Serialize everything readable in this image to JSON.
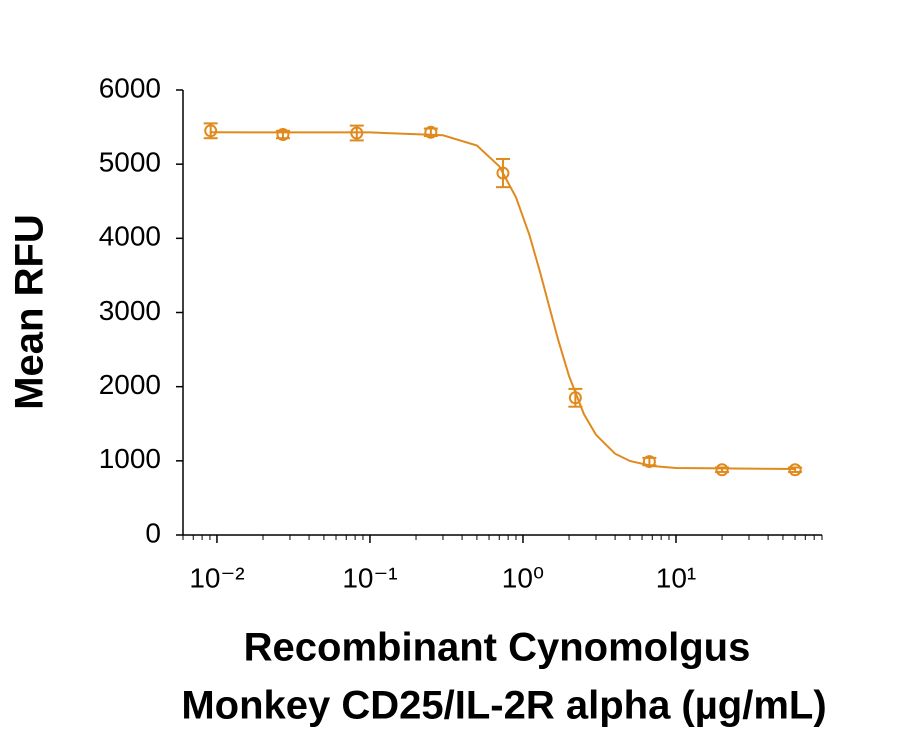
{
  "chart_data": {
    "type": "scatter",
    "y_label": "Mean RFU",
    "x_label": [
      "Recombinant Cynomolgus",
      "Monkey CD25/IL-2R alpha (µg/mL)"
    ],
    "x_log": true,
    "minor_ticks": true,
    "color": "#e08a1e",
    "xlim": [
      0.006,
      90
    ],
    "ylim": [
      0,
      6000
    ],
    "xticks": [
      {
        "value": 0.01,
        "label": "10⁻²"
      },
      {
        "value": 0.1,
        "label": "10⁻¹"
      },
      {
        "value": 1,
        "label": "10⁰"
      },
      {
        "value": 10,
        "label": "10¹"
      }
    ],
    "yticks": [
      0,
      1000,
      2000,
      3000,
      4000,
      5000,
      6000
    ],
    "x": [
      0.0091,
      0.027,
      0.082,
      0.25,
      0.74,
      2.2,
      6.7,
      20,
      60
    ],
    "values": [
      5450,
      5400,
      5420,
      5430,
      4880,
      1850,
      990,
      880,
      880
    ],
    "errors": [
      100,
      50,
      100,
      50,
      190,
      120,
      50,
      30,
      30
    ],
    "curve": {
      "x": [
        0.009,
        0.1,
        0.3,
        0.5,
        0.7,
        0.9,
        1.1,
        1.3,
        1.5,
        1.7,
        2.0,
        2.5,
        3,
        4,
        5,
        7,
        10,
        60
      ],
      "values": [
        5430,
        5428,
        5390,
        5251,
        4971,
        4554,
        4050,
        3528,
        3045,
        2628,
        2143,
        1631,
        1351,
        1096,
        998,
        930,
        904,
        890
      ]
    }
  }
}
